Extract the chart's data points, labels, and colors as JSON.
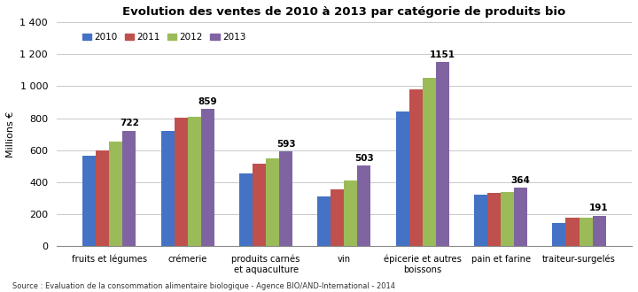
{
  "title": "Evolution des ventes de 2010 à 2013 par catégorie de produits bio",
  "ylabel": "Millions €",
  "categories": [
    "fruits et légumes",
    "crémerie",
    "produits carnés\net aquaculture",
    "vin",
    "épicerie et autres\nboissons",
    "pain et farine",
    "traiteur-surgelés"
  ],
  "years": [
    "2010",
    "2011",
    "2012",
    "2013"
  ],
  "colors": [
    "#4472C4",
    "#C0504D",
    "#9BBB59",
    "#8064A2"
  ],
  "values": {
    "2010": [
      565,
      720,
      455,
      310,
      840,
      320,
      145
    ],
    "2011": [
      597,
      805,
      515,
      355,
      980,
      330,
      175
    ],
    "2012": [
      655,
      810,
      550,
      410,
      1055,
      340,
      180
    ],
    "2013": [
      722,
      859,
      593,
      503,
      1151,
      364,
      191
    ]
  },
  "annotations": [
    722,
    859,
    593,
    503,
    1151,
    364,
    191
  ],
  "ylim": [
    0,
    1400
  ],
  "yticks": [
    0,
    200,
    400,
    600,
    800,
    1000,
    1200,
    1400
  ],
  "ytick_labels": [
    "0",
    "200",
    "400",
    "600",
    "800",
    "1 000",
    "1 200",
    "1 400"
  ],
  "source": "Source : Evaluation de la consommation alimentaire biologique - Agence BIO/AND-International - 2014",
  "background_color": "#FFFFFF",
  "grid_color": "#C0C0C0",
  "bar_width": 0.17,
  "group_width": 1.0
}
